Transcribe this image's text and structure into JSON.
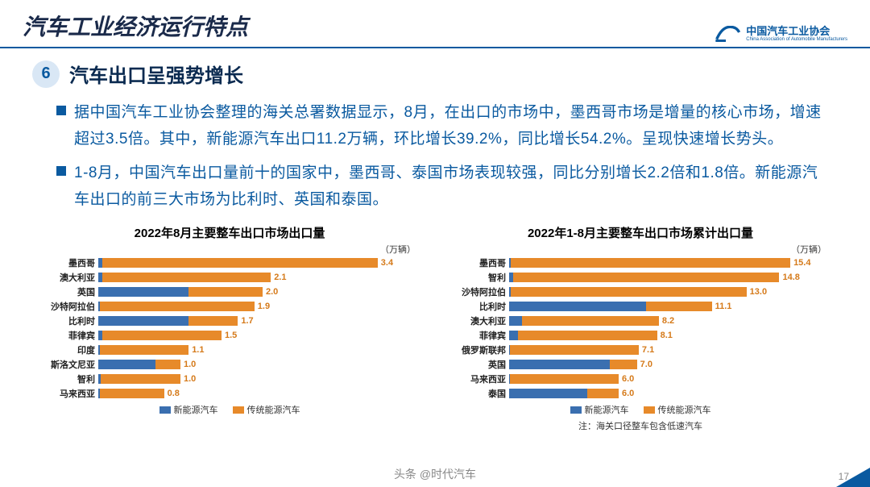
{
  "header": {
    "title": "汽车工业经济运行特点",
    "org_name": "中国汽车工业协会",
    "org_sub": "China Association of Automobile Manufacturers",
    "logo_color": "#0a5aa0"
  },
  "section": {
    "number": "6",
    "title": "汽车出口呈强势增长",
    "badge_bg": "#d9e7f5",
    "badge_fg": "#0a5aa0"
  },
  "bullets": [
    "据中国汽车工业协会整理的海关总署数据显示，8月，在出口的市场中，墨西哥市场是增量的核心市场，增速超过3.5倍。其中，新能源汽车出口11.2万辆，环比增长39.2%，同比增长54.2%。呈现快速增长势头。",
    "1-8月，中国汽车出口量前十的国家中，墨西哥、泰国市场表现较强，同比分别增长2.2倍和1.8倍。新能源汽车出口的前三大市场为比利时、英国和泰国。"
  ],
  "colors": {
    "nev": "#3a6fb0",
    "ice": "#e78a2a",
    "text": "#0a5aa0",
    "value": "#d57a1a"
  },
  "chart_left": {
    "title": "2022年8月主要整车出口市场出口量",
    "unit": "（万辆）",
    "max": 4.0,
    "rows": [
      {
        "label": "墨西哥",
        "nev": 0.05,
        "ice": 3.35,
        "total": 3.4
      },
      {
        "label": "澳大利亚",
        "nev": 0.05,
        "ice": 2.05,
        "total": 2.1
      },
      {
        "label": "英国",
        "nev": 1.1,
        "ice": 0.9,
        "total": 2.0
      },
      {
        "label": "沙特阿拉伯",
        "nev": 0.02,
        "ice": 1.88,
        "total": 1.9
      },
      {
        "label": "比利时",
        "nev": 1.1,
        "ice": 0.6,
        "total": 1.7
      },
      {
        "label": "菲律宾",
        "nev": 0.05,
        "ice": 1.45,
        "total": 1.5
      },
      {
        "label": "印度",
        "nev": 0.02,
        "ice": 1.08,
        "total": 1.1
      },
      {
        "label": "斯洛文尼亚",
        "nev": 0.7,
        "ice": 0.3,
        "total": 1.0
      },
      {
        "label": "智利",
        "nev": 0.03,
        "ice": 0.97,
        "total": 1.0
      },
      {
        "label": "马来西亚",
        "nev": 0.02,
        "ice": 0.78,
        "total": 0.8
      }
    ]
  },
  "chart_right": {
    "title": "2022年1-8月主要整车出口市场累计出口量",
    "unit": "（万辆）",
    "max": 18.0,
    "rows": [
      {
        "label": "墨西哥",
        "nev": 0.1,
        "ice": 15.3,
        "total": 15.4
      },
      {
        "label": "智利",
        "nev": 0.2,
        "ice": 14.6,
        "total": 14.8
      },
      {
        "label": "沙特阿拉伯",
        "nev": 0.1,
        "ice": 12.9,
        "total": 13.0
      },
      {
        "label": "比利时",
        "nev": 7.5,
        "ice": 3.6,
        "total": 11.1
      },
      {
        "label": "澳大利亚",
        "nev": 0.7,
        "ice": 7.5,
        "total": 8.2
      },
      {
        "label": "菲律宾",
        "nev": 0.5,
        "ice": 7.6,
        "total": 8.1
      },
      {
        "label": "俄罗斯联邦",
        "nev": 0.05,
        "ice": 7.05,
        "total": 7.1
      },
      {
        "label": "英国",
        "nev": 5.5,
        "ice": 1.5,
        "total": 7.0
      },
      {
        "label": "马来西亚",
        "nev": 0.05,
        "ice": 5.95,
        "total": 6.0
      },
      {
        "label": "泰国",
        "nev": 4.3,
        "ice": 1.7,
        "total": 6.0
      }
    ]
  },
  "legend": {
    "nev": "新能源汽车",
    "ice": "传统能源汽车"
  },
  "footer_note": "注：海关口径整车包含低速汽车",
  "watermark": "头条 @时代汽车",
  "page": "17"
}
